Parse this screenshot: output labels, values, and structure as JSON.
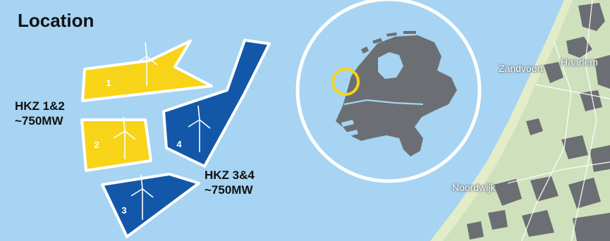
{
  "title": "Location",
  "zones": [
    {
      "number": "1",
      "color": "#f7d417"
    },
    {
      "number": "2",
      "color": "#f7d417"
    },
    {
      "number": "3",
      "color": "#1358a8"
    },
    {
      "number": "4",
      "color": "#1358a8"
    }
  ],
  "groups": {
    "west": {
      "name": "HKZ 1&2",
      "capacity": "~750MW"
    },
    "east": {
      "name": "HKZ 3&4",
      "capacity": "~750MW"
    }
  },
  "places": {
    "zandvoort": "Zandvoort",
    "haarlem": "Haarlem",
    "noordwijk": "Noordwijk"
  },
  "colors": {
    "sea": "#a6d4f2",
    "land": "#cfe0bd",
    "urban": "#6b6e72",
    "netherlands": "#6b6e72",
    "highlight": "#f7d417"
  }
}
